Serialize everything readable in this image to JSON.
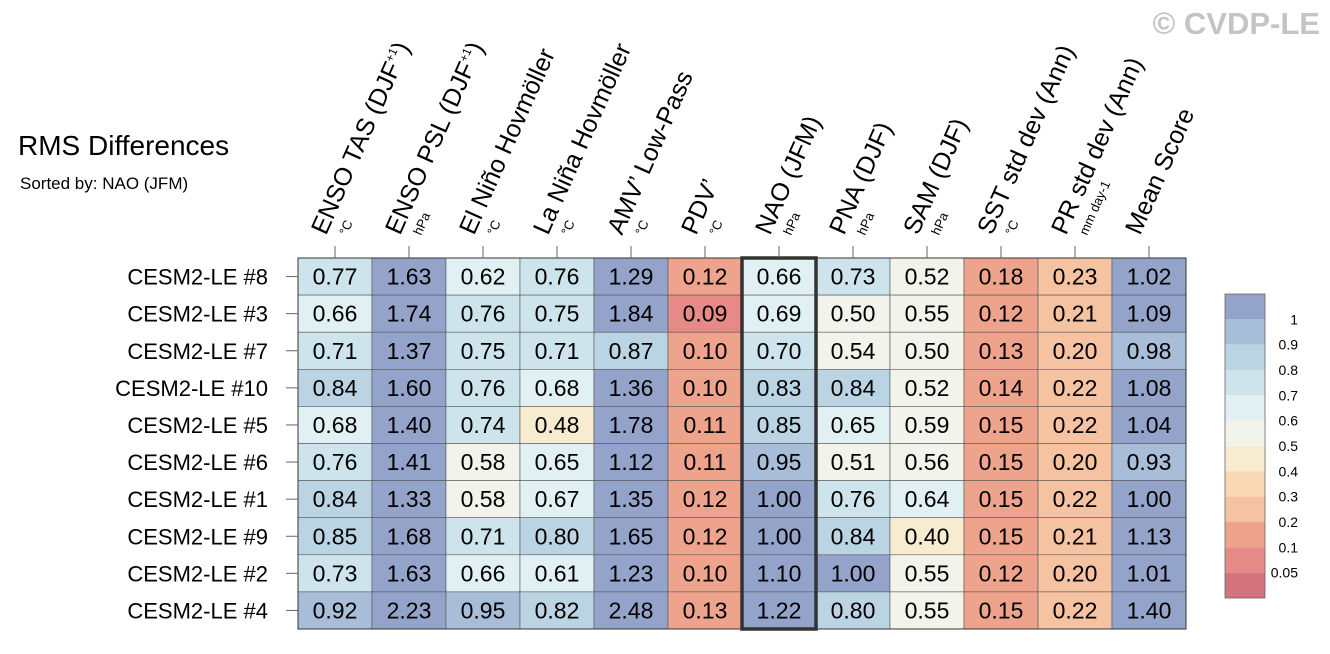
{
  "header": {
    "title": "RMS Differences",
    "subtitle": "Sorted by: NAO (JFM)",
    "watermark": "© CVDP-LE"
  },
  "chart_data": {
    "type": "heatmap",
    "columns": [
      {
        "label": "ENSO TAS (DJF",
        "sup": "+1",
        "suffix": ")",
        "unit": "°C"
      },
      {
        "label": "ENSO PSL (DJF",
        "sup": "+1",
        "suffix": ")",
        "unit": "hPa"
      },
      {
        "label": "El Niño Hovmöller",
        "sup": "",
        "suffix": "",
        "unit": "°C"
      },
      {
        "label": "La Niña Hovmöller",
        "sup": "",
        "suffix": "",
        "unit": "°C"
      },
      {
        "label": "AMV’ Low-Pass",
        "sup": "",
        "suffix": "",
        "unit": "°C"
      },
      {
        "label": "PDV’",
        "sup": "",
        "suffix": "",
        "unit": "°C"
      },
      {
        "label": "NAO (JFM)",
        "sup": "",
        "suffix": "",
        "unit": "hPa"
      },
      {
        "label": "PNA (DJF)",
        "sup": "",
        "suffix": "",
        "unit": "hPa"
      },
      {
        "label": "SAM (DJF)",
        "sup": "",
        "suffix": "",
        "unit": "hPa"
      },
      {
        "label": "SST std dev (Ann)",
        "sup": "",
        "suffix": "",
        "unit": "°C"
      },
      {
        "label": "PR std dev (Ann)",
        "sup": "",
        "suffix": "",
        "unit": "mm day-1"
      },
      {
        "label": "Mean Score",
        "sup": "",
        "suffix": "",
        "unit": ""
      }
    ],
    "rows": [
      "CESM2-LE #8",
      "CESM2-LE #3",
      "CESM2-LE #7",
      "CESM2-LE #10",
      "CESM2-LE #5",
      "CESM2-LE #6",
      "CESM2-LE #1",
      "CESM2-LE #9",
      "CESM2-LE #2",
      "CESM2-LE #4"
    ],
    "values": [
      [
        "0.77",
        "1.63",
        "0.62",
        "0.76",
        "1.29",
        "0.12",
        "0.66",
        "0.73",
        "0.52",
        "0.18",
        "0.23",
        "1.02"
      ],
      [
        "0.66",
        "1.74",
        "0.76",
        "0.75",
        "1.84",
        "0.09",
        "0.69",
        "0.50",
        "0.55",
        "0.12",
        "0.21",
        "1.09"
      ],
      [
        "0.71",
        "1.37",
        "0.75",
        "0.71",
        "0.87",
        "0.10",
        "0.70",
        "0.54",
        "0.50",
        "0.13",
        "0.20",
        "0.98"
      ],
      [
        "0.84",
        "1.60",
        "0.76",
        "0.68",
        "1.36",
        "0.10",
        "0.83",
        "0.84",
        "0.52",
        "0.14",
        "0.22",
        "1.08"
      ],
      [
        "0.68",
        "1.40",
        "0.74",
        "0.48",
        "1.78",
        "0.11",
        "0.85",
        "0.65",
        "0.59",
        "0.15",
        "0.22",
        "1.04"
      ],
      [
        "0.76",
        "1.41",
        "0.58",
        "0.65",
        "1.12",
        "0.11",
        "0.95",
        "0.51",
        "0.56",
        "0.15",
        "0.20",
        "0.93"
      ],
      [
        "0.84",
        "1.33",
        "0.58",
        "0.67",
        "1.35",
        "0.12",
        "1.00",
        "0.76",
        "0.64",
        "0.15",
        "0.22",
        "1.00"
      ],
      [
        "0.85",
        "1.68",
        "0.71",
        "0.80",
        "1.65",
        "0.12",
        "1.00",
        "0.84",
        "0.40",
        "0.15",
        "0.21",
        "1.13"
      ],
      [
        "0.73",
        "1.63",
        "0.66",
        "0.61",
        "1.23",
        "0.10",
        "1.10",
        "1.00",
        "0.55",
        "0.12",
        "0.20",
        "1.01"
      ],
      [
        "0.92",
        "2.23",
        "0.95",
        "0.82",
        "2.48",
        "0.13",
        "1.22",
        "0.80",
        "0.55",
        "0.15",
        "0.22",
        "1.40"
      ]
    ],
    "highlight_column": "NAO (JFM)",
    "colorbar": {
      "labels": [
        "1",
        "0.9",
        "0.8",
        "0.7",
        "0.6",
        "0.5",
        "0.4",
        "0.3",
        "0.2",
        "0.1",
        "0.05"
      ],
      "colors": [
        "#94a3c9",
        "#a8bdd8",
        "#bbd4e4",
        "#cde4ed",
        "#e1f0f3",
        "#f2f3ea",
        "#f8ecd0",
        "#f8d7b4",
        "#f5c2a2",
        "#eea48c",
        "#e58a86",
        "#d3737e"
      ]
    }
  }
}
